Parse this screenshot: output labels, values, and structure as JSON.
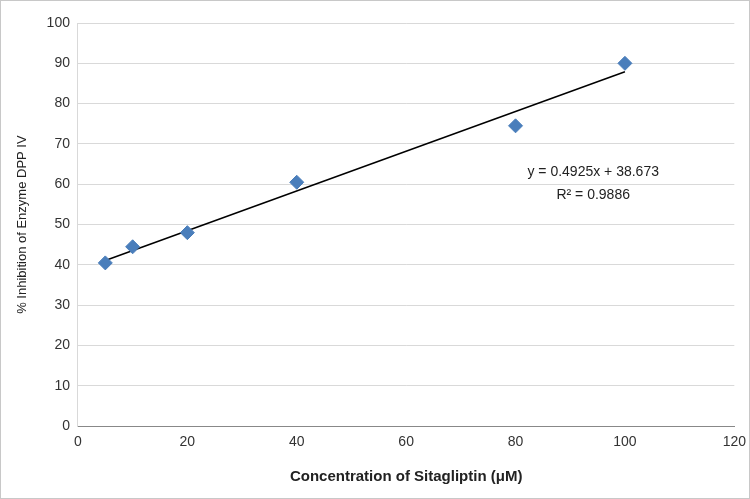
{
  "chart_data": {
    "type": "scatter",
    "x_label": "Concentration of Sitagliptin (μM)",
    "y_label": "% Inhibition of Enzyme DPP IV",
    "xlim": [
      0,
      120
    ],
    "xticks": [
      0,
      20,
      40,
      60,
      80,
      100,
      120
    ],
    "ylim": [
      0,
      100
    ],
    "yticks": [
      0,
      10,
      20,
      30,
      40,
      50,
      60,
      70,
      80,
      90,
      100
    ],
    "grid": "y",
    "series": [
      {
        "x": [
          5,
          10,
          20,
          40,
          80,
          100
        ],
        "values": [
          40.5,
          44.5,
          48,
          60.5,
          74.5,
          90
        ],
        "color": "#4a7ebb",
        "marker": "diamond"
      },
      {
        "type": "line",
        "x": [
          5,
          100
        ],
        "values": [
          41.1,
          87.9
        ],
        "color": "#000000",
        "marker": "none",
        "line_style": "solid"
      }
    ],
    "annotations": [
      "y = 0.4925x + 38.673",
      "R² = 0.9886"
    ]
  }
}
